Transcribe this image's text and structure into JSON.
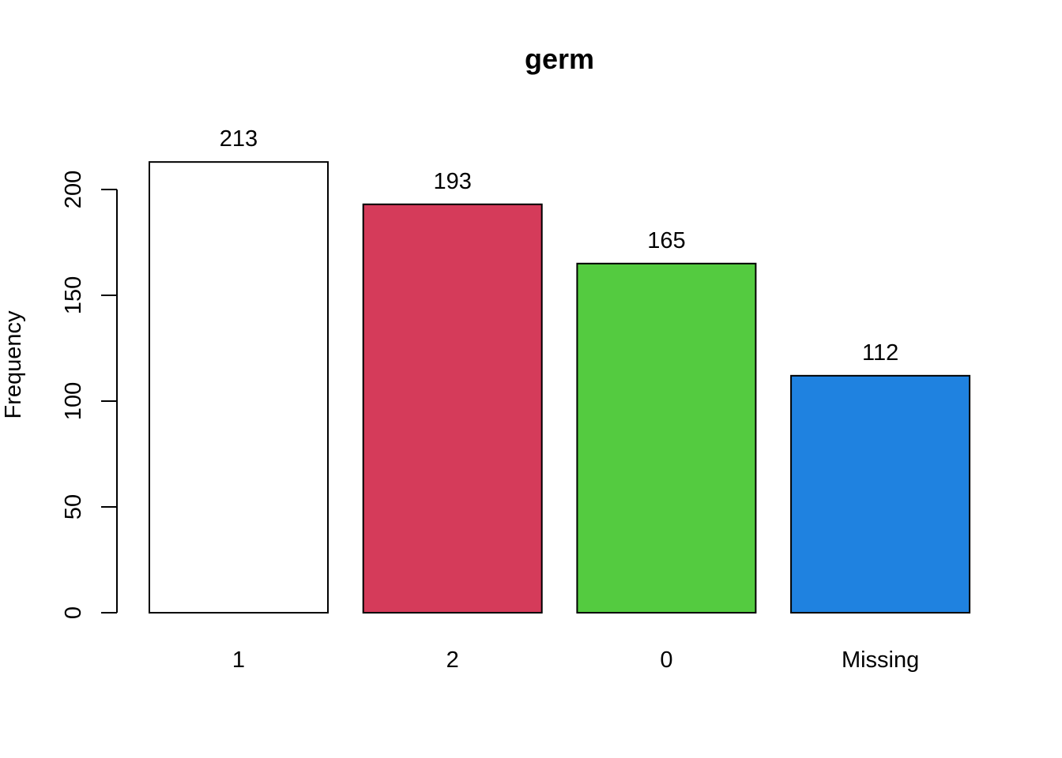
{
  "chart_data": {
    "type": "bar",
    "title": "germ",
    "xlabel": "",
    "ylabel": "Frequency",
    "categories": [
      "1",
      "2",
      "0",
      "Missing"
    ],
    "values": [
      213,
      193,
      165,
      112
    ],
    "data_labels": [
      "213",
      "193",
      "165",
      "112"
    ],
    "colors": [
      "#ffffff",
      "#d53b5a",
      "#54cb40",
      "#1f82e0"
    ],
    "ylim": [
      0,
      200
    ],
    "yticks": [
      0,
      50,
      100,
      150,
      200
    ],
    "ytick_labels": [
      "0",
      "50",
      "100",
      "150",
      "200"
    ],
    "grid": false,
    "legend": "none"
  }
}
